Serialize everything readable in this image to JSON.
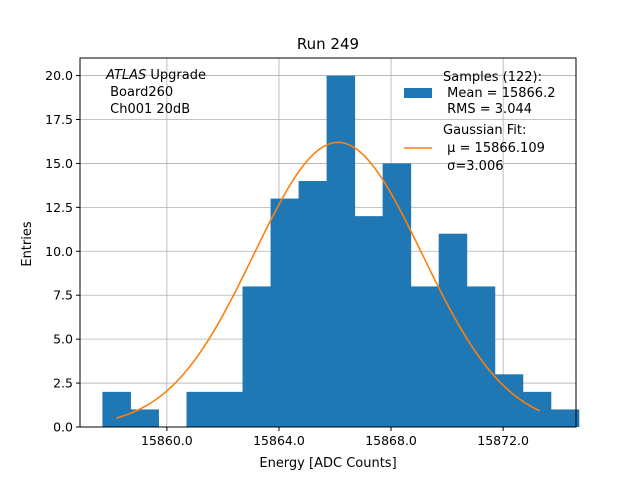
{
  "chart_data": {
    "type": "bar",
    "title": "Run 249",
    "xlabel": "Energy [ADC Counts]",
    "ylabel": "Entries",
    "xlim": [
      15856.9,
      15874.6
    ],
    "ylim": [
      0,
      21
    ],
    "grid": true,
    "xticks": [
      15860.0,
      15864.0,
      15868.0,
      15872.0
    ],
    "xtick_labels": [
      "15860.0",
      "15864.0",
      "15868.0",
      "15872.0"
    ],
    "yticks": [
      0,
      2.5,
      5,
      7.5,
      10,
      12.5,
      15,
      17.5,
      20
    ],
    "ytick_labels": [
      "0.0",
      "2.5",
      "5.0",
      "7.5",
      "10.0",
      "12.5",
      "15.0",
      "17.5",
      "20.0"
    ],
    "bin_edges": [
      15857.7,
      15858.7,
      15859.7,
      15860.7,
      15861.7,
      15862.7,
      15863.7,
      15864.7,
      15865.7,
      15866.7,
      15867.7,
      15868.7,
      15869.7,
      15870.7,
      15871.7,
      15872.7,
      15873.7
    ],
    "bins": [
      {
        "x0": 15857.7,
        "x1": 15858.7,
        "value": 2
      },
      {
        "x0": 15858.7,
        "x1": 15859.7,
        "value": 1
      },
      {
        "x0": 15860.7,
        "x1": 15861.7,
        "value": 2
      },
      {
        "x0": 15861.7,
        "x1": 15862.7,
        "value": 2
      },
      {
        "x0": 15862.7,
        "x1": 15863.7,
        "value": 8
      },
      {
        "x0": 15863.7,
        "x1": 15864.7,
        "value": 13
      },
      {
        "x0": 15864.7,
        "x1": 15865.7,
        "value": 14
      },
      {
        "x0": 15865.7,
        "x1": 15866.7,
        "value": 20
      },
      {
        "x0": 15866.7,
        "x1": 15867.7,
        "value": 12
      },
      {
        "x0": 15867.7,
        "x1": 15868.7,
        "value": 15
      },
      {
        "x0": 15868.7,
        "x1": 15869.7,
        "value": 8
      },
      {
        "x0": 15869.7,
        "x1": 15870.7,
        "value": 11
      },
      {
        "x0": 15870.7,
        "x1": 15871.7,
        "value": 8
      },
      {
        "x0": 15871.7,
        "x1": 15872.7,
        "value": 3
      },
      {
        "x0": 15872.7,
        "x1": 15873.7,
        "value": 2
      },
      {
        "x0": 15873.7,
        "x1": 15874.7,
        "value": 1
      }
    ],
    "fit": {
      "type": "gaussian",
      "mu": 15866.109,
      "sigma": 3.006,
      "amplitude": 16.2,
      "x_range": [
        15858.2,
        15873.3
      ]
    },
    "legend": {
      "position": "top-right",
      "histogram_label_lines": [
        "Samples (122):",
        " Mean = 15866.2",
        " RMS = 3.044"
      ],
      "fit_label_lines": [
        "Gaussian Fit:",
        " μ = 15866.109",
        " σ=3.006"
      ]
    },
    "annotation": {
      "position": "top-left",
      "lines_italic_prefix": "ATLAS",
      "line1_rest": " Upgrade",
      "line2": " Board260",
      "line3": " Ch001 20dB"
    },
    "colors": {
      "bar": "#1f77b4",
      "fit": "#ff7f0e",
      "grid": "#b0b0b0",
      "axis": "#000000"
    }
  }
}
